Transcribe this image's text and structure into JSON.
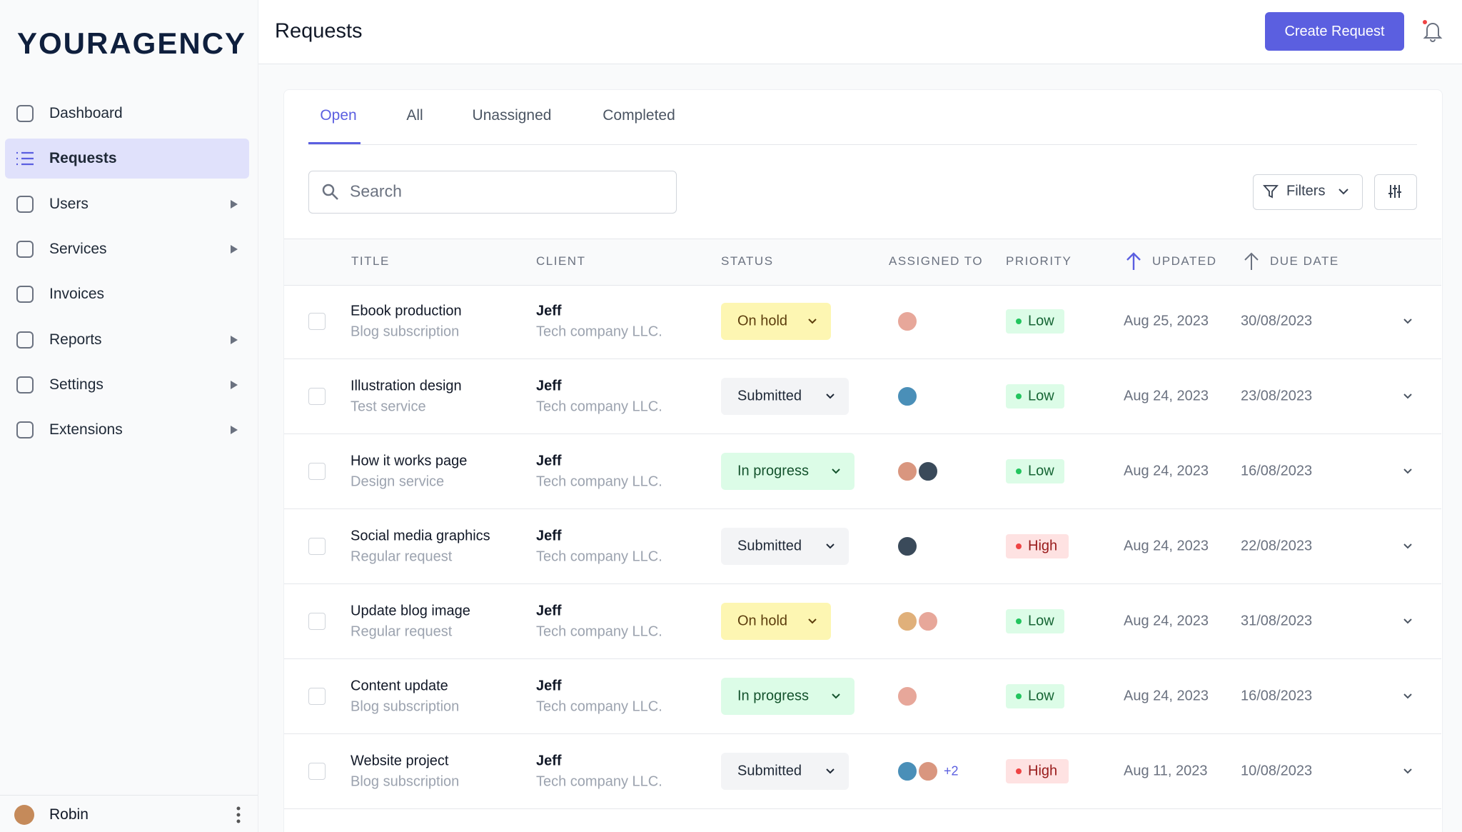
{
  "brand": "YOURAGENCY",
  "nav": [
    "Dashboard",
    "Requests",
    "Users",
    "Services",
    "Invoices",
    "Reports",
    "Settings",
    "Extensions"
  ],
  "user": "Robin",
  "header": {
    "title": "Requests",
    "button": "Create Request"
  },
  "tabs": [
    "Open",
    "All",
    "Unassigned",
    "Completed"
  ],
  "search": "Search",
  "filters": "Filters",
  "columns": [
    "TITLE",
    "CLIENT",
    "STATUS",
    "ASSIGNED TO",
    "PRIORITY",
    "UPDATED",
    "DUE DATE"
  ],
  "rows": [
    {
      "title": "Ebook production",
      "service": "Blog subscription",
      "client": "Jeff",
      "company": "Tech company LLC.",
      "status": "On hold",
      "priority": "Low",
      "updated": "Aug 25, 2023",
      "due": "30/08/2023"
    },
    {
      "title": "Illustration design",
      "service": "Test service",
      "client": "Jeff",
      "company": "Tech company LLC.",
      "status": "Submitted",
      "priority": "Low",
      "updated": "Aug 24, 2023",
      "due": "23/08/2023"
    },
    {
      "title": "How it works page",
      "service": "Design service",
      "client": "Jeff",
      "company": "Tech company LLC.",
      "status": "In progress",
      "priority": "Low",
      "updated": "Aug 24, 2023",
      "due": "16/08/2023"
    },
    {
      "title": "Social media graphics",
      "service": "Regular request",
      "client": "Jeff",
      "company": "Tech company LLC.",
      "status": "Submitted",
      "priority": "High",
      "updated": "Aug 24, 2023",
      "due": "22/08/2023"
    },
    {
      "title": "Update blog image",
      "service": "Regular request",
      "client": "Jeff",
      "company": "Tech company LLC.",
      "status": "On hold",
      "priority": "Low",
      "updated": "Aug 24, 2023",
      "due": "31/08/2023"
    },
    {
      "title": "Content update",
      "service": "Blog subscription",
      "client": "Jeff",
      "company": "Tech company LLC.",
      "status": "In progress",
      "priority": "Low",
      "updated": "Aug 24, 2023",
      "due": "16/08/2023"
    },
    {
      "title": "Website project",
      "service": "Blog subscription",
      "client": "Jeff",
      "company": "Tech company LLC.",
      "status": "Submitted",
      "priority": "High",
      "updated": "Aug 11, 2023",
      "due": "10/08/2023",
      "extra": "+2"
    }
  ]
}
